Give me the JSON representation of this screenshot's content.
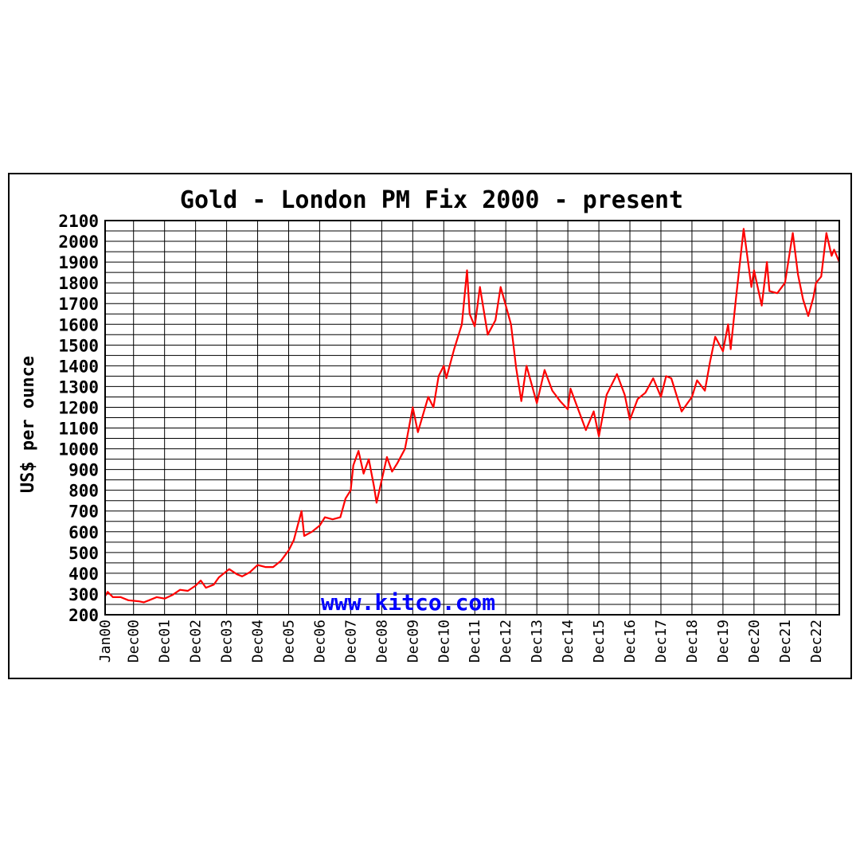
{
  "chart_data": {
    "type": "line",
    "title": "Gold - London PM Fix 2000 - present",
    "ylabel": "US$ per ounce",
    "xlabel": "",
    "watermark": "www.kitco.com",
    "ylim": [
      200,
      2100
    ],
    "ytick_values": [
      200,
      300,
      400,
      500,
      600,
      700,
      800,
      900,
      1000,
      1100,
      1200,
      1300,
      1400,
      1500,
      1600,
      1700,
      1800,
      1900,
      2000,
      2100
    ],
    "y_minor_step": 50,
    "xlim": [
      "2000-01",
      "2023-09"
    ],
    "xticks": [
      {
        "x": "2000-01",
        "label": "Jan00"
      },
      {
        "x": "2000-12",
        "label": "Dec00"
      },
      {
        "x": "2001-12",
        "label": "Dec01"
      },
      {
        "x": "2002-12",
        "label": "Dec02"
      },
      {
        "x": "2003-12",
        "label": "Dec03"
      },
      {
        "x": "2004-12",
        "label": "Dec04"
      },
      {
        "x": "2005-12",
        "label": "Dec05"
      },
      {
        "x": "2006-12",
        "label": "Dec06"
      },
      {
        "x": "2007-12",
        "label": "Dec07"
      },
      {
        "x": "2008-12",
        "label": "Dec08"
      },
      {
        "x": "2009-12",
        "label": "Dec09"
      },
      {
        "x": "2010-12",
        "label": "Dec10"
      },
      {
        "x": "2011-12",
        "label": "Dec11"
      },
      {
        "x": "2012-12",
        "label": "Dec12"
      },
      {
        "x": "2013-12",
        "label": "Dec13"
      },
      {
        "x": "2014-12",
        "label": "Dec14"
      },
      {
        "x": "2015-12",
        "label": "Dec15"
      },
      {
        "x": "2016-12",
        "label": "Dec16"
      },
      {
        "x": "2017-12",
        "label": "Dec17"
      },
      {
        "x": "2018-12",
        "label": "Dec18"
      },
      {
        "x": "2019-12",
        "label": "Dec19"
      },
      {
        "x": "2020-12",
        "label": "Dec20"
      },
      {
        "x": "2021-12",
        "label": "Dec21"
      },
      {
        "x": "2022-12",
        "label": "Dec22"
      }
    ],
    "grid": true,
    "colors": {
      "line": "#ff0000",
      "grid": "#000000",
      "text": "#000000",
      "watermark": "#0000ff"
    },
    "series": [
      {
        "points": [
          [
            "2000-01",
            290
          ],
          [
            "2000-02",
            310
          ],
          [
            "2000-04",
            285
          ],
          [
            "2000-07",
            285
          ],
          [
            "2000-10",
            270
          ],
          [
            "2001-02",
            265
          ],
          [
            "2001-04",
            260
          ],
          [
            "2001-06",
            270
          ],
          [
            "2001-09",
            285
          ],
          [
            "2001-12",
            278
          ],
          [
            "2002-03",
            295
          ],
          [
            "2002-06",
            320
          ],
          [
            "2002-09",
            315
          ],
          [
            "2002-12",
            340
          ],
          [
            "2003-02",
            365
          ],
          [
            "2003-04",
            330
          ],
          [
            "2003-07",
            345
          ],
          [
            "2003-09",
            380
          ],
          [
            "2003-12",
            410
          ],
          [
            "2004-01",
            420
          ],
          [
            "2004-04",
            395
          ],
          [
            "2004-06",
            385
          ],
          [
            "2004-09",
            405
          ],
          [
            "2004-12",
            440
          ],
          [
            "2005-03",
            430
          ],
          [
            "2005-06",
            430
          ],
          [
            "2005-09",
            460
          ],
          [
            "2005-12",
            510
          ],
          [
            "2006-02",
            560
          ],
          [
            "2006-05",
            700
          ],
          [
            "2006-06",
            580
          ],
          [
            "2006-09",
            600
          ],
          [
            "2006-12",
            630
          ],
          [
            "2007-02",
            670
          ],
          [
            "2007-05",
            660
          ],
          [
            "2007-08",
            670
          ],
          [
            "2007-10",
            760
          ],
          [
            "2007-12",
            800
          ],
          [
            "2008-01",
            920
          ],
          [
            "2008-03",
            990
          ],
          [
            "2008-05",
            880
          ],
          [
            "2008-07",
            950
          ],
          [
            "2008-09",
            820
          ],
          [
            "2008-10",
            740
          ],
          [
            "2008-12",
            850
          ],
          [
            "2009-02",
            960
          ],
          [
            "2009-04",
            890
          ],
          [
            "2009-06",
            930
          ],
          [
            "2009-09",
            1000
          ],
          [
            "2009-12",
            1200
          ],
          [
            "2010-02",
            1080
          ],
          [
            "2010-06",
            1250
          ],
          [
            "2010-08",
            1200
          ],
          [
            "2010-10",
            1350
          ],
          [
            "2010-12",
            1400
          ],
          [
            "2011-01",
            1340
          ],
          [
            "2011-04",
            1480
          ],
          [
            "2011-07",
            1600
          ],
          [
            "2011-09",
            1860
          ],
          [
            "2011-10",
            1650
          ],
          [
            "2011-12",
            1590
          ],
          [
            "2012-02",
            1780
          ],
          [
            "2012-05",
            1550
          ],
          [
            "2012-08",
            1620
          ],
          [
            "2012-10",
            1780
          ],
          [
            "2012-12",
            1690
          ],
          [
            "2013-02",
            1600
          ],
          [
            "2013-04",
            1390
          ],
          [
            "2013-06",
            1230
          ],
          [
            "2013-08",
            1400
          ],
          [
            "2013-12",
            1220
          ],
          [
            "2014-03",
            1380
          ],
          [
            "2014-06",
            1280
          ],
          [
            "2014-09",
            1230
          ],
          [
            "2014-12",
            1190
          ],
          [
            "2015-01",
            1290
          ],
          [
            "2015-04",
            1190
          ],
          [
            "2015-07",
            1090
          ],
          [
            "2015-10",
            1180
          ],
          [
            "2015-12",
            1060
          ],
          [
            "2016-03",
            1260
          ],
          [
            "2016-07",
            1360
          ],
          [
            "2016-10",
            1260
          ],
          [
            "2016-12",
            1140
          ],
          [
            "2017-03",
            1240
          ],
          [
            "2017-06",
            1270
          ],
          [
            "2017-09",
            1340
          ],
          [
            "2017-12",
            1250
          ],
          [
            "2018-02",
            1350
          ],
          [
            "2018-04",
            1340
          ],
          [
            "2018-08",
            1180
          ],
          [
            "2018-12",
            1250
          ],
          [
            "2019-02",
            1330
          ],
          [
            "2019-05",
            1280
          ],
          [
            "2019-07",
            1420
          ],
          [
            "2019-09",
            1540
          ],
          [
            "2019-12",
            1470
          ],
          [
            "2020-02",
            1600
          ],
          [
            "2020-03",
            1480
          ],
          [
            "2020-05",
            1720
          ],
          [
            "2020-08",
            2060
          ],
          [
            "2020-11",
            1780
          ],
          [
            "2020-12",
            1860
          ],
          [
            "2021-03",
            1690
          ],
          [
            "2021-05",
            1900
          ],
          [
            "2021-06",
            1760
          ],
          [
            "2021-09",
            1750
          ],
          [
            "2021-12",
            1800
          ],
          [
            "2022-03",
            2040
          ],
          [
            "2022-05",
            1840
          ],
          [
            "2022-07",
            1720
          ],
          [
            "2022-09",
            1640
          ],
          [
            "2022-11",
            1730
          ],
          [
            "2022-12",
            1800
          ],
          [
            "2023-02",
            1830
          ],
          [
            "2023-04",
            2040
          ],
          [
            "2023-06",
            1930
          ],
          [
            "2023-07",
            1960
          ],
          [
            "2023-09",
            1900
          ]
        ]
      }
    ]
  }
}
